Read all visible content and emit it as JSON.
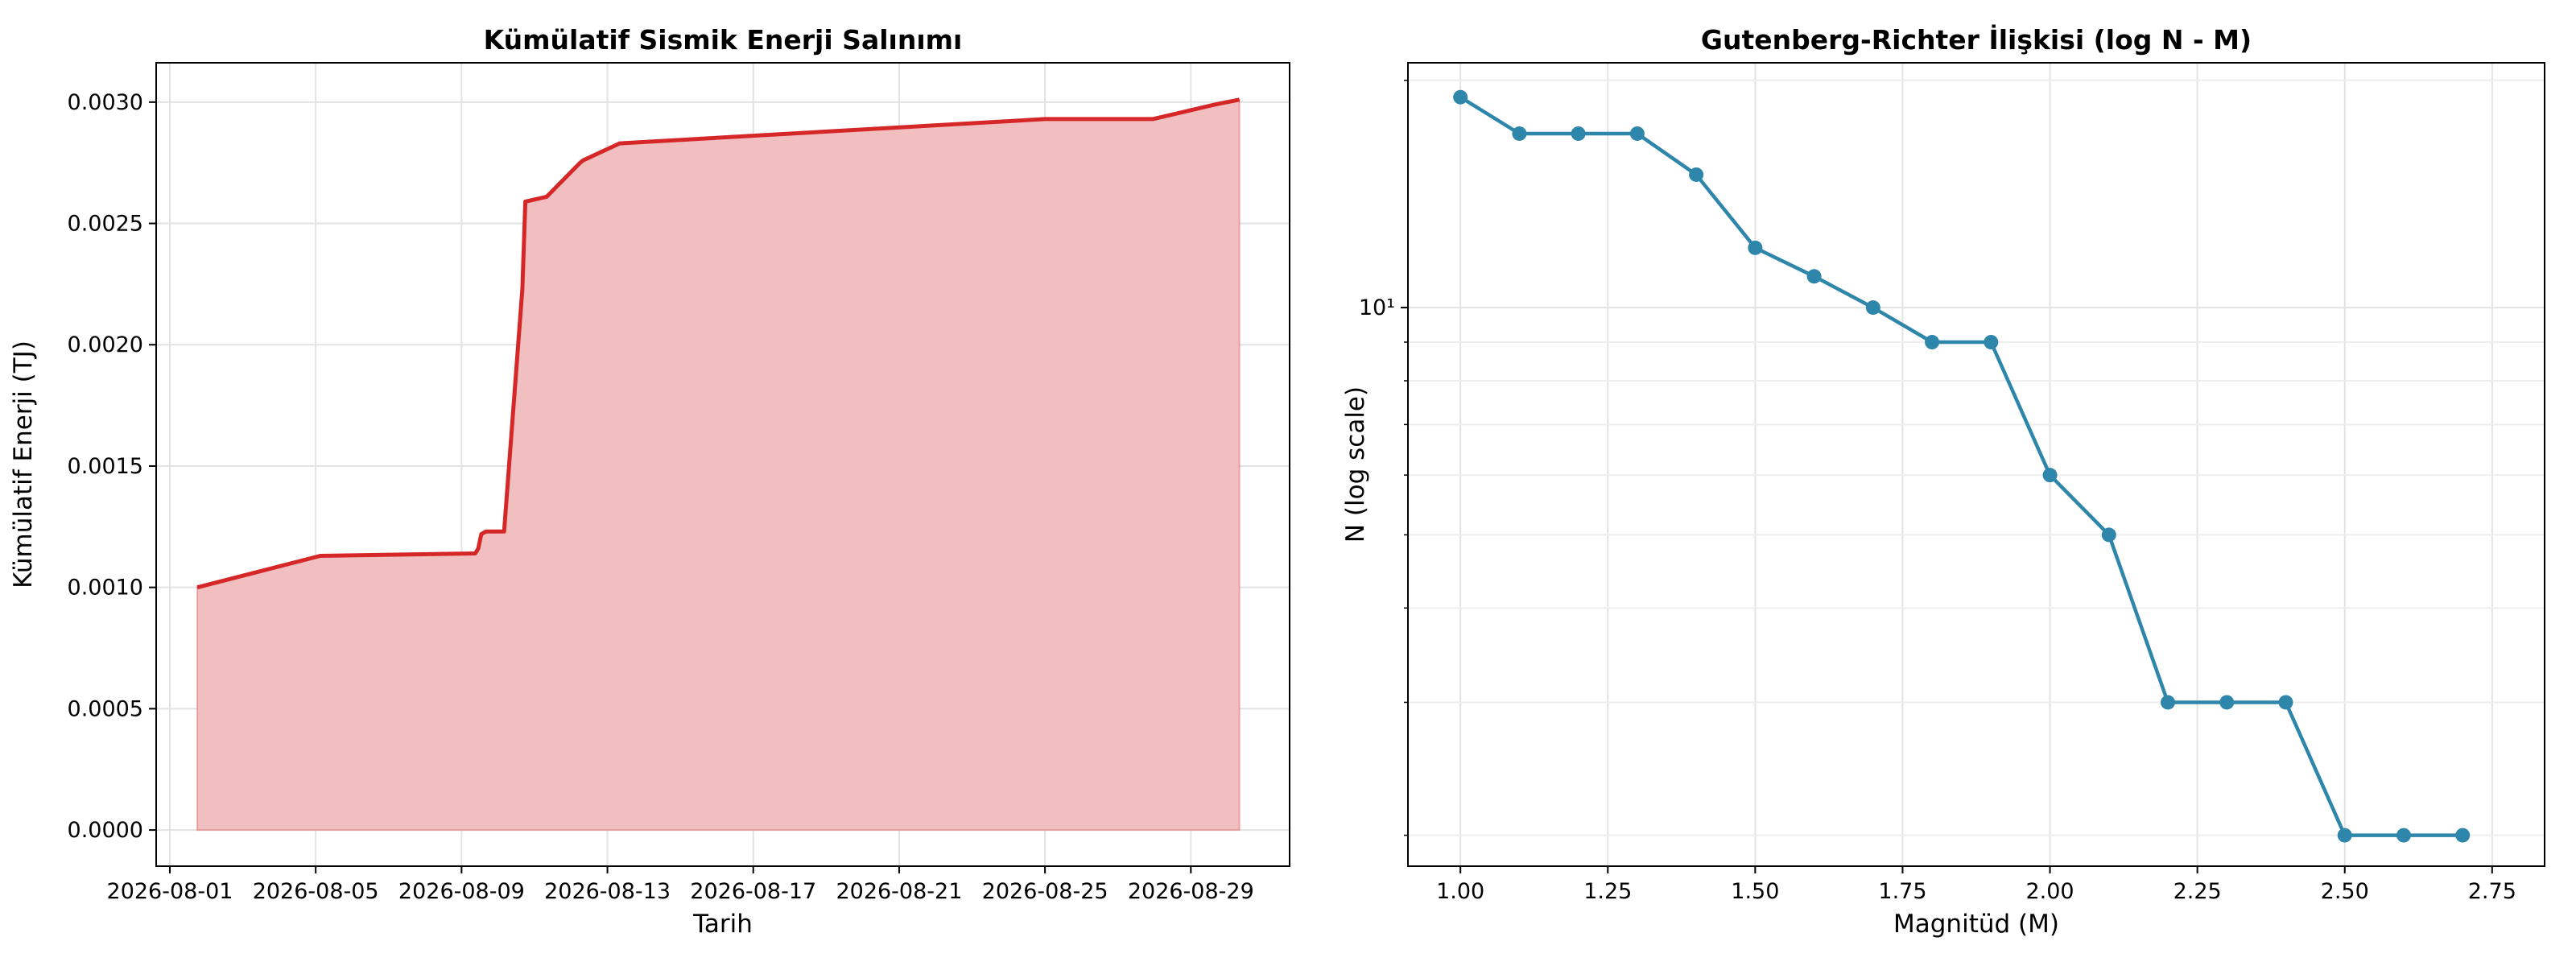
{
  "chart_data": [
    {
      "type": "area",
      "title": "Kümülatif Sismik Enerji Salınımı",
      "x_label": "Tarih",
      "y_label": "Kümülatif Enerji (TJ)",
      "x": [
        "2026-08-01 18:00",
        "2026-08-05 03:00",
        "2026-08-09 09:00",
        "2026-08-09 11:00",
        "2026-08-09 13:00",
        "2026-08-09 16:00",
        "2026-08-10 04:00",
        "2026-08-10 16:00",
        "2026-08-10 18:00",
        "2026-08-11 08:00",
        "2026-08-12 06:00",
        "2026-08-12 08:00",
        "2026-08-13 08:00",
        "2026-08-25 00:00",
        "2026-08-27 23:00",
        "2026-08-29 16:00",
        "2026-08-30 08:00"
      ],
      "series": [
        {
          "name": "Kümülatif Enerji",
          "color": "#d62728",
          "fill": "#f2bfc0",
          "values": [
            0.001,
            0.00113,
            0.00114,
            0.00116,
            0.00122,
            0.00123,
            0.00123,
            0.00223,
            0.00259,
            0.00261,
            0.00275,
            0.00276,
            0.00283,
            0.00293,
            0.00293,
            0.00299,
            0.00301
          ]
        }
      ],
      "xlim": [
        "2026-07-31 15:00",
        "2026-08-31 17:00"
      ],
      "xticks": [
        "2026-08-01",
        "2026-08-05",
        "2026-08-09",
        "2026-08-13",
        "2026-08-17",
        "2026-08-21",
        "2026-08-25",
        "2026-08-29"
      ],
      "ylim": [
        -0.000149,
        0.003162
      ],
      "yticks": [
        {
          "value": 0,
          "label": "0.0000"
        },
        {
          "value": 0.0005,
          "label": "0.0005"
        },
        {
          "value": 0.001,
          "label": "0.0010"
        },
        {
          "value": 0.0015,
          "label": "0.0015"
        },
        {
          "value": 0.002,
          "label": "0.0020"
        },
        {
          "value": 0.0025,
          "label": "0.0025"
        },
        {
          "value": 0.003,
          "label": "0.0030"
        }
      ],
      "grid": true
    },
    {
      "type": "line",
      "title": "Gutenberg-Richter İlişkisi (log N - M)",
      "x_label": "Magnitüd (M)",
      "y_label": "N (log scale)",
      "x": [
        1.0,
        1.1,
        1.2,
        1.3,
        1.4,
        1.5,
        1.6,
        1.7,
        1.8,
        1.9,
        2.0,
        2.1,
        2.2,
        2.3,
        2.4,
        2.5,
        2.6,
        2.7
      ],
      "series": [
        {
          "name": "N",
          "color": "#2e86ab",
          "values": [
            19,
            17,
            17,
            17,
            15,
            12,
            11,
            10,
            9,
            9,
            6,
            5,
            3,
            3,
            3,
            2,
            2,
            2
          ]
        }
      ],
      "xlim": [
        0.911,
        2.839
      ],
      "xticks": [
        {
          "value": 1,
          "label": "1.00"
        },
        {
          "value": 1.25,
          "label": "1.25"
        },
        {
          "value": 1.5,
          "label": "1.50"
        },
        {
          "value": 1.75,
          "label": "1.75"
        },
        {
          "value": 2,
          "label": "2.00"
        },
        {
          "value": 2.25,
          "label": "2.25"
        },
        {
          "value": 2.5,
          "label": "2.50"
        },
        {
          "value": 2.75,
          "label": "2.75"
        }
      ],
      "ylim": [
        1.82,
        21.1
      ],
      "yticks": [
        {
          "value": 10,
          "label": "10¹"
        }
      ],
      "yminor": [
        2,
        3,
        4,
        5,
        6,
        7,
        8,
        9,
        20
      ],
      "log_y": true,
      "grid": true
    }
  ]
}
